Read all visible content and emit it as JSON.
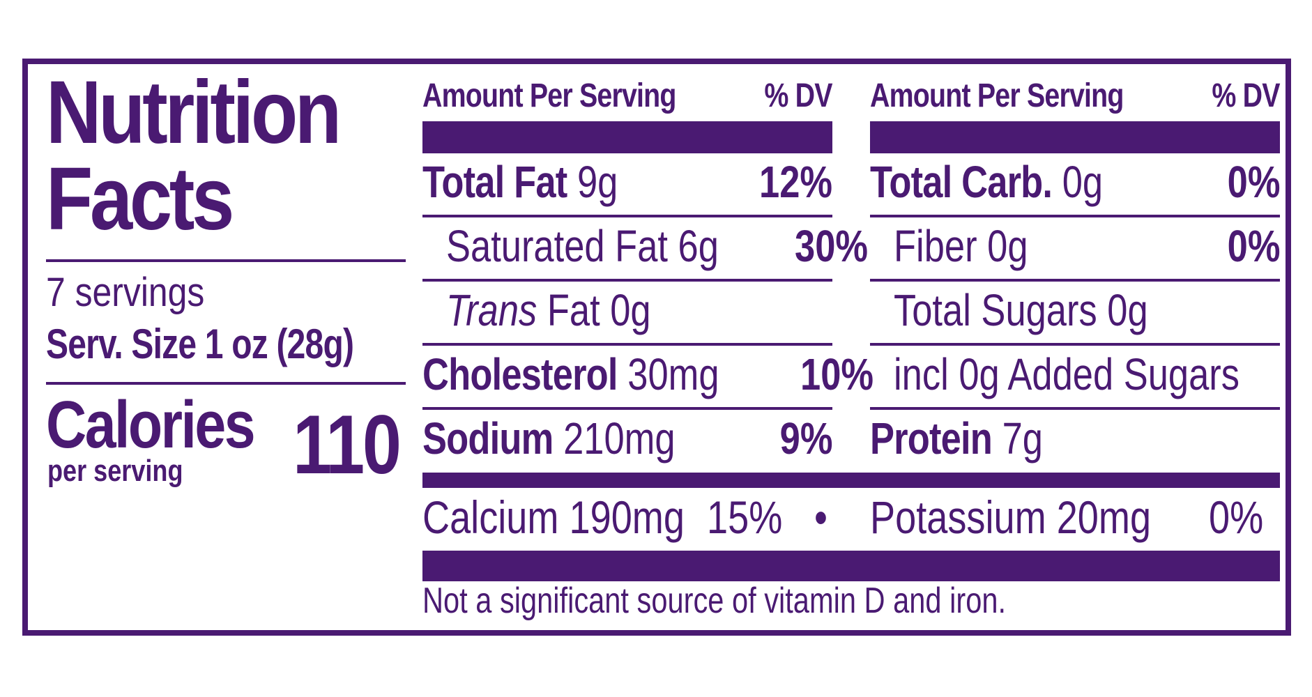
{
  "label": {
    "title_line1": "Nutrition",
    "title_line2": "Facts",
    "servings": "7 servings",
    "serving_size": "Serv. Size 1 oz (28g)",
    "calories_label": "Calories",
    "calories_sub": "per serving",
    "calories_value": "110",
    "header_amount": "Amount Per Serving",
    "header_dv": "% DV",
    "left_column": [
      {
        "name": "Total Fat",
        "amount": "9g",
        "dv": "12%"
      },
      {
        "name": "Saturated Fat",
        "amount": "6g",
        "dv": "30%"
      },
      {
        "name": "Trans",
        "name_rest": "Fat",
        "amount": "0g",
        "dv": ""
      },
      {
        "name": "Cholesterol",
        "amount": "30mg",
        "dv": "10%"
      },
      {
        "name": "Sodium",
        "amount": "210mg",
        "dv": "9%"
      }
    ],
    "right_column": [
      {
        "name": "Total Carb.",
        "amount": "0g",
        "dv": "0%"
      },
      {
        "name": "Fiber",
        "amount": "0g",
        "dv": "0%"
      },
      {
        "name": "Total Sugars",
        "amount": "0g",
        "dv": ""
      },
      {
        "name": "incl 0g Added Sugars",
        "amount": "",
        "dv": ""
      },
      {
        "name": "Protein",
        "amount": "7g",
        "dv": ""
      }
    ],
    "minerals": {
      "calcium": "Calcium 190mg",
      "calcium_dv": "15%",
      "separator": "•",
      "potassium": "Potassium 20mg",
      "potassium_dv": "0%"
    },
    "footnote": "Not a significant source of vitamin D and iron.",
    "colors": {
      "ink": "#4a1a72",
      "background": "#ffffff"
    }
  }
}
